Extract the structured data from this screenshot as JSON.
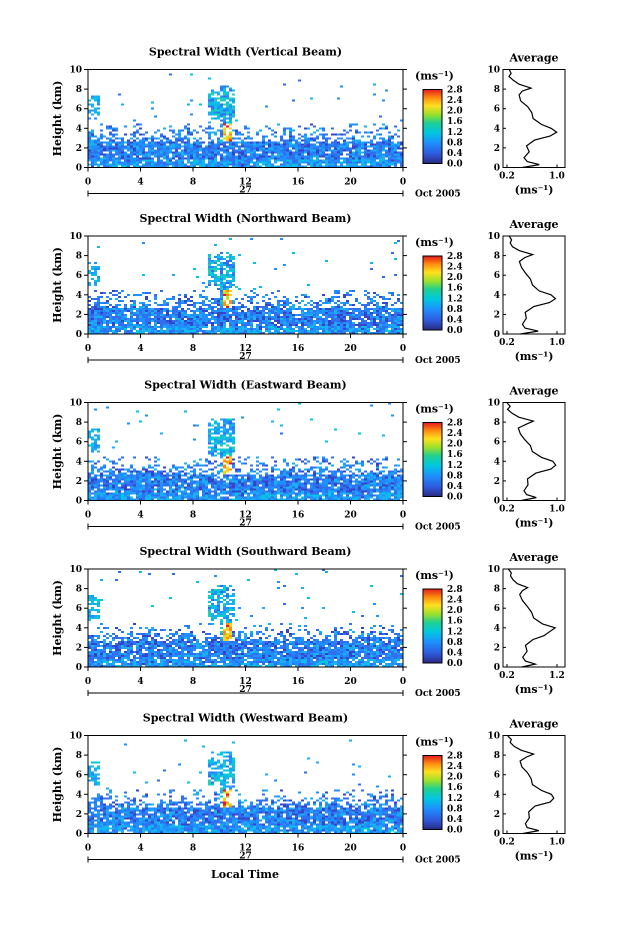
{
  "chart_data": {
    "type": "heatmap",
    "figure_xlabel": "Local Time",
    "panels": [
      {
        "title": "Spectral Width (Vertical Beam)",
        "cb_max": 2.8,
        "avg_xticks": [
          "0.2",
          "1.0"
        ],
        "avg_xlim": [
          0.2,
          1.0
        ],
        "avg_profile": [
          [
            0.0,
            0.45
          ],
          [
            0.3,
            0.72
          ],
          [
            0.6,
            0.52
          ],
          [
            1.0,
            0.48
          ],
          [
            1.6,
            0.55
          ],
          [
            2.2,
            0.52
          ],
          [
            2.8,
            0.64
          ],
          [
            3.2,
            0.9
          ],
          [
            3.6,
            1.0
          ],
          [
            4.0,
            0.92
          ],
          [
            4.4,
            0.75
          ],
          [
            5.0,
            0.62
          ],
          [
            5.6,
            0.6
          ],
          [
            6.2,
            0.52
          ],
          [
            6.8,
            0.42
          ],
          [
            7.4,
            0.38
          ],
          [
            7.8,
            0.45
          ],
          [
            8.1,
            0.58
          ],
          [
            8.5,
            0.38
          ],
          [
            8.9,
            0.3
          ],
          [
            9.3,
            0.24
          ],
          [
            9.6,
            0.26
          ],
          [
            10.0,
            0.22
          ]
        ]
      },
      {
        "title": "Spectral Width (Northward Beam)",
        "cb_max": 2.8,
        "avg_xticks": [
          "0.2",
          "1.0"
        ],
        "avg_xlim": [
          0.2,
          1.0
        ],
        "avg_profile": [
          [
            0.0,
            0.42
          ],
          [
            0.3,
            0.7
          ],
          [
            0.6,
            0.5
          ],
          [
            1.0,
            0.46
          ],
          [
            1.6,
            0.52
          ],
          [
            2.2,
            0.5
          ],
          [
            2.8,
            0.62
          ],
          [
            3.2,
            0.88
          ],
          [
            3.6,
            0.98
          ],
          [
            4.0,
            0.9
          ],
          [
            4.4,
            0.72
          ],
          [
            5.0,
            0.6
          ],
          [
            5.6,
            0.58
          ],
          [
            6.2,
            0.5
          ],
          [
            6.8,
            0.44
          ],
          [
            7.4,
            0.4
          ],
          [
            7.8,
            0.48
          ],
          [
            8.1,
            0.6
          ],
          [
            8.5,
            0.4
          ],
          [
            8.9,
            0.3
          ],
          [
            9.3,
            0.24
          ],
          [
            9.6,
            0.28
          ],
          [
            10.0,
            0.22
          ]
        ]
      },
      {
        "title": "Spectral Width (Eastward Beam)",
        "cb_max": 2.8,
        "avg_xticks": [
          "0.2",
          "1.0"
        ],
        "avg_xlim": [
          0.2,
          1.0
        ],
        "avg_profile": [
          [
            0.0,
            0.44
          ],
          [
            0.3,
            0.68
          ],
          [
            0.6,
            0.5
          ],
          [
            1.0,
            0.47
          ],
          [
            1.6,
            0.54
          ],
          [
            2.2,
            0.52
          ],
          [
            2.8,
            0.66
          ],
          [
            3.2,
            0.9
          ],
          [
            3.6,
            0.98
          ],
          [
            4.0,
            0.93
          ],
          [
            4.4,
            0.74
          ],
          [
            5.0,
            0.6
          ],
          [
            5.6,
            0.58
          ],
          [
            6.2,
            0.5
          ],
          [
            6.8,
            0.42
          ],
          [
            7.4,
            0.38
          ],
          [
            7.8,
            0.5
          ],
          [
            8.1,
            0.62
          ],
          [
            8.5,
            0.4
          ],
          [
            8.9,
            0.28
          ],
          [
            9.3,
            0.22
          ],
          [
            9.6,
            0.26
          ],
          [
            10.0,
            0.2
          ]
        ]
      },
      {
        "title": "Spectral Width (Southward Beam)",
        "cb_max": 2.8,
        "avg_xticks": [
          "0.2",
          "1.2"
        ],
        "avg_xlim": [
          0.2,
          1.2
        ],
        "avg_profile": [
          [
            0.0,
            0.5
          ],
          [
            0.3,
            0.78
          ],
          [
            0.6,
            0.56
          ],
          [
            1.0,
            0.52
          ],
          [
            1.6,
            0.6
          ],
          [
            2.2,
            0.58
          ],
          [
            2.8,
            0.72
          ],
          [
            3.2,
            0.95
          ],
          [
            3.6,
            1.05
          ],
          [
            4.0,
            1.15
          ],
          [
            4.4,
            0.9
          ],
          [
            5.0,
            0.72
          ],
          [
            5.6,
            0.68
          ],
          [
            6.2,
            0.6
          ],
          [
            6.8,
            0.5
          ],
          [
            7.4,
            0.44
          ],
          [
            7.8,
            0.52
          ],
          [
            8.1,
            0.62
          ],
          [
            8.5,
            0.42
          ],
          [
            8.9,
            0.32
          ],
          [
            9.3,
            0.26
          ],
          [
            9.6,
            0.3
          ],
          [
            10.0,
            0.24
          ]
        ]
      },
      {
        "title": "Spectral Width (Westward Beam)",
        "cb_max": 2.8,
        "avg_xticks": [
          "0.2",
          "1.0"
        ],
        "avg_xlim": [
          0.2,
          1.0
        ],
        "avg_profile": [
          [
            0.0,
            0.46
          ],
          [
            0.3,
            0.7
          ],
          [
            0.6,
            0.52
          ],
          [
            1.0,
            0.5
          ],
          [
            1.6,
            0.56
          ],
          [
            2.2,
            0.54
          ],
          [
            2.8,
            0.66
          ],
          [
            3.2,
            0.88
          ],
          [
            3.6,
            0.96
          ],
          [
            4.0,
            0.92
          ],
          [
            4.4,
            0.74
          ],
          [
            5.0,
            0.62
          ],
          [
            5.6,
            0.6
          ],
          [
            6.2,
            0.52
          ],
          [
            6.8,
            0.45
          ],
          [
            7.4,
            0.4
          ],
          [
            7.8,
            0.5
          ],
          [
            8.1,
            0.62
          ],
          [
            8.5,
            0.42
          ],
          [
            8.9,
            0.3
          ],
          [
            9.3,
            0.24
          ],
          [
            9.6,
            0.28
          ],
          [
            10.0,
            0.22
          ]
        ]
      }
    ],
    "panel_ylabel": "Height (km)",
    "ylim": [
      0,
      10
    ],
    "yticks": [
      "0",
      "2",
      "4",
      "6",
      "8",
      "10"
    ],
    "xlim": [
      0,
      24
    ],
    "xticks": [
      "0",
      "4",
      "8",
      "12",
      "16",
      "20",
      "0"
    ],
    "day_label": "27",
    "month_label": "Oct 2005",
    "colorbar_unit": "(ms⁻¹)",
    "colorbar_ticks": [
      "0.0",
      "0.4",
      "0.8",
      "1.2",
      "1.6",
      "2.0",
      "2.4",
      "2.8"
    ],
    "avg_title": "Average",
    "avg_xlabel": "(ms⁻¹)",
    "colors": {
      "low": "#1c2a8c",
      "mid": "#00c8d8",
      "high": "#e41a1c",
      "axis": "#000000"
    }
  }
}
